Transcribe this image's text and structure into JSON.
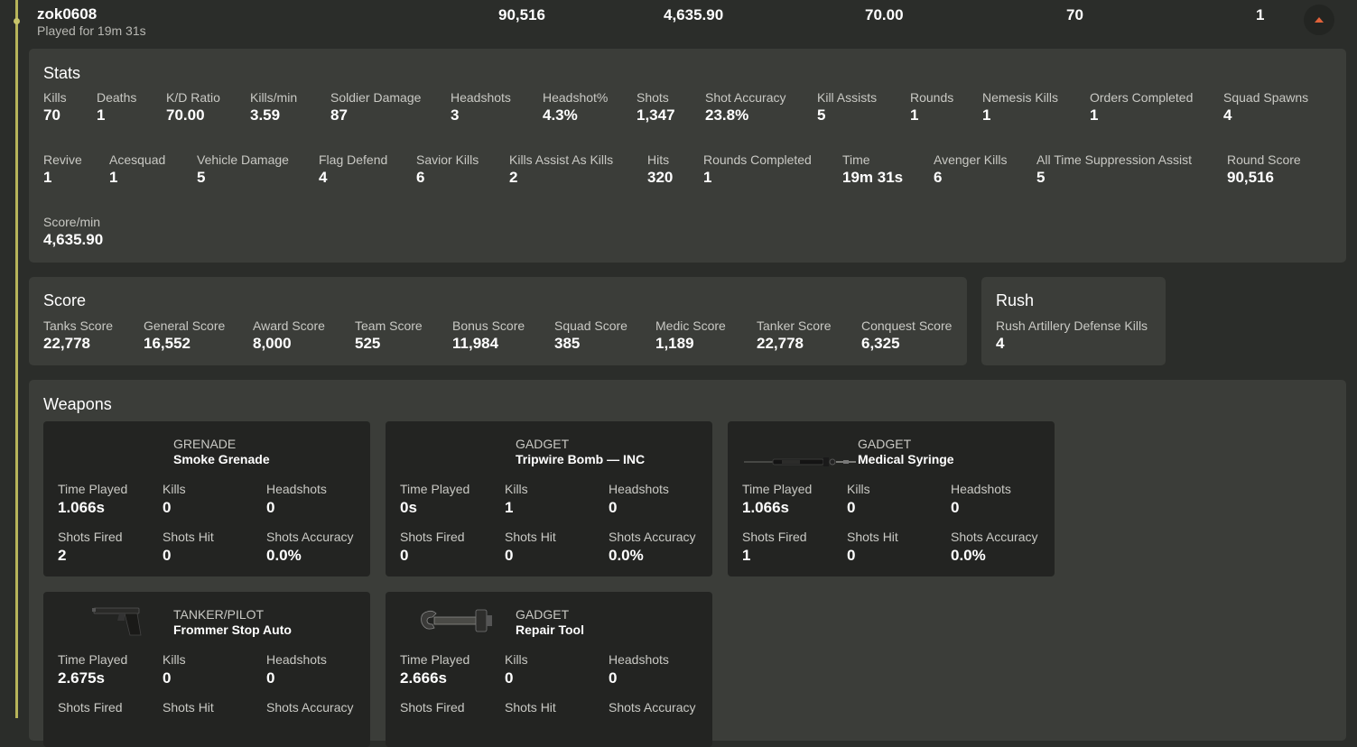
{
  "player": {
    "name": "zok0608",
    "played_for": "Played for 19m 31s",
    "values": [
      "90,516",
      "4,635.90",
      "70.00",
      "70",
      "1"
    ]
  },
  "stats": {
    "title": "Stats",
    "items": [
      {
        "label": "Kills",
        "value": "70"
      },
      {
        "label": "Deaths",
        "value": "1"
      },
      {
        "label": "K/D Ratio",
        "value": "70.00"
      },
      {
        "label": "Kills/min",
        "value": "3.59"
      },
      {
        "label": "Soldier Damage",
        "value": "87"
      },
      {
        "label": "Headshots",
        "value": "3"
      },
      {
        "label": "Headshot%",
        "value": "4.3%"
      },
      {
        "label": "Shots",
        "value": "1,347"
      },
      {
        "label": "Shot Accuracy",
        "value": "23.8%"
      },
      {
        "label": "Kill Assists",
        "value": "5"
      },
      {
        "label": "Rounds",
        "value": "1"
      },
      {
        "label": "Nemesis Kills",
        "value": "1"
      },
      {
        "label": "Orders Completed",
        "value": "1"
      },
      {
        "label": "Squad Spawns",
        "value": "4"
      },
      {
        "label": "Revive",
        "value": "1"
      },
      {
        "label": "Acesquad",
        "value": "1"
      },
      {
        "label": "Vehicle Damage",
        "value": "5"
      },
      {
        "label": "Flag Defend",
        "value": "4"
      },
      {
        "label": "Savior Kills",
        "value": "6"
      },
      {
        "label": "Kills Assist As Kills",
        "value": "2"
      },
      {
        "label": "Hits",
        "value": "320"
      },
      {
        "label": "Rounds Completed",
        "value": "1"
      },
      {
        "label": "Time",
        "value": "19m 31s"
      },
      {
        "label": "Avenger Kills",
        "value": "6"
      },
      {
        "label": "All Time Suppression Assist",
        "value": "5"
      },
      {
        "label": "Round Score",
        "value": "90,516"
      },
      {
        "label": "Score/min",
        "value": "4,635.90"
      }
    ]
  },
  "score": {
    "title": "Score",
    "items": [
      {
        "label": "Tanks Score",
        "value": "22,778"
      },
      {
        "label": "General Score",
        "value": "16,552"
      },
      {
        "label": "Award Score",
        "value": "8,000"
      },
      {
        "label": "Team Score",
        "value": "525"
      },
      {
        "label": "Bonus Score",
        "value": "11,984"
      },
      {
        "label": "Squad Score",
        "value": "385"
      },
      {
        "label": "Medic Score",
        "value": "1,189"
      },
      {
        "label": "Tanker Score",
        "value": "22,778"
      },
      {
        "label": "Conquest Score",
        "value": "6,325"
      }
    ]
  },
  "rush": {
    "title": "Rush",
    "items": [
      {
        "label": "Rush Artillery Defense Kills",
        "value": "4"
      }
    ]
  },
  "weapons": {
    "title": "Weapons",
    "stat_labels": [
      "Time Played",
      "Kills",
      "Headshots",
      "Shots Fired",
      "Shots Hit",
      "Shots Accuracy"
    ],
    "cards": [
      {
        "category": "GRENADE",
        "name": "Smoke Grenade",
        "image_icon": "none",
        "values": [
          "1.066s",
          "0",
          "0",
          "2",
          "0",
          "0.0%"
        ]
      },
      {
        "category": "GADGET",
        "name": "Tripwire Bomb — INC",
        "image_icon": "none",
        "values": [
          "0s",
          "1",
          "0",
          "0",
          "0",
          "0.0%"
        ]
      },
      {
        "category": "GADGET",
        "name": "Medical Syringe",
        "image_icon": "syringe-icon",
        "values": [
          "1.066s",
          "0",
          "0",
          "1",
          "0",
          "0.0%"
        ]
      },
      {
        "category": "TANKER/PILOT",
        "name": "Frommer Stop Auto",
        "image_icon": "pistol-icon",
        "values": [
          "2.675s",
          "0",
          "0",
          "",
          "",
          ""
        ]
      },
      {
        "category": "GADGET",
        "name": "Repair Tool",
        "image_icon": "wrench-icon",
        "values": [
          "2.666s",
          "0",
          "0",
          "",
          "",
          ""
        ]
      }
    ]
  },
  "colors": {
    "background": "#2b2d2a",
    "panel": "#3b3d39",
    "card": "#232422",
    "accent_rail": "#b7b45a",
    "collapse_arrow": "#e0623a"
  }
}
